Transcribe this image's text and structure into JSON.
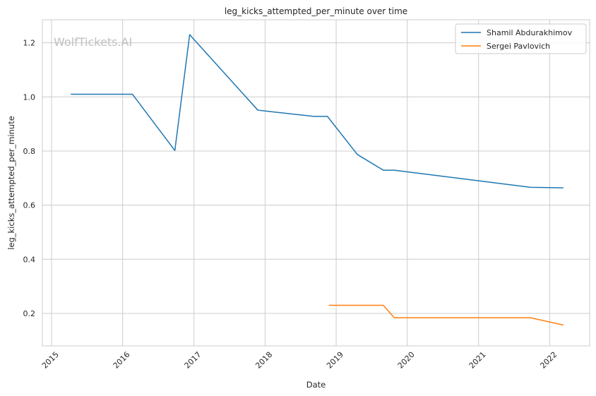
{
  "chart_data": {
    "type": "line",
    "title": "leg_kicks_attempted_per_minute over time",
    "xlabel": "Date",
    "ylabel": "leg_kicks_attempted_per_minute",
    "watermark": "WolfTickets.AI",
    "x_axis_type": "date",
    "xlim": [
      "2014-11-15",
      "2022-07-25"
    ],
    "ylim": [
      0.08,
      1.285
    ],
    "x_ticks": [
      "2015",
      "2016",
      "2017",
      "2018",
      "2019",
      "2020",
      "2021",
      "2022"
    ],
    "y_ticks": [
      "0.2",
      "0.4",
      "0.6",
      "0.8",
      "1.0",
      "1.2"
    ],
    "grid": true,
    "legend": "top-right",
    "series": [
      {
        "name": "Shamil Abdurakhimov",
        "color": "#1f77b4",
        "x": [
          "2015-04-10",
          "2016-02-20",
          "2016-09-25",
          "2016-12-10",
          "2017-11-25",
          "2018-09-08",
          "2018-11-17",
          "2019-04-20",
          "2019-08-31",
          "2019-10-26",
          "2021-09-25",
          "2022-03-12"
        ],
        "y": [
          1.01,
          1.01,
          0.802,
          1.23,
          0.951,
          0.928,
          0.928,
          0.787,
          0.729,
          0.729,
          0.666,
          0.664
        ]
      },
      {
        "name": "Sergei Pavlovich",
        "color": "#ff7f0e",
        "x": [
          "2018-11-24",
          "2019-08-31",
          "2019-10-26",
          "2021-09-25",
          "2022-03-12"
        ],
        "y": [
          0.23,
          0.23,
          0.184,
          0.184,
          0.157
        ]
      }
    ]
  }
}
